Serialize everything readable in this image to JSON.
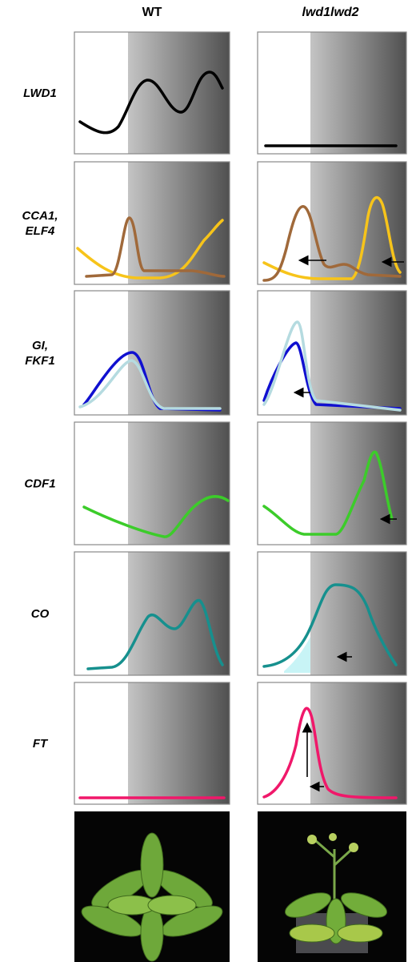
{
  "columns": [
    "WT",
    "lwd1lwd2"
  ],
  "rows": [
    {
      "label": [
        "LWD1"
      ]
    },
    {
      "label": [
        "CCA1,",
        "ELF4"
      ]
    },
    {
      "label": [
        "GI,",
        "FKF1"
      ]
    },
    {
      "label": [
        "CDF1"
      ]
    },
    {
      "label": [
        "CO"
      ]
    },
    {
      "label": [
        "FT"
      ]
    }
  ]
}
